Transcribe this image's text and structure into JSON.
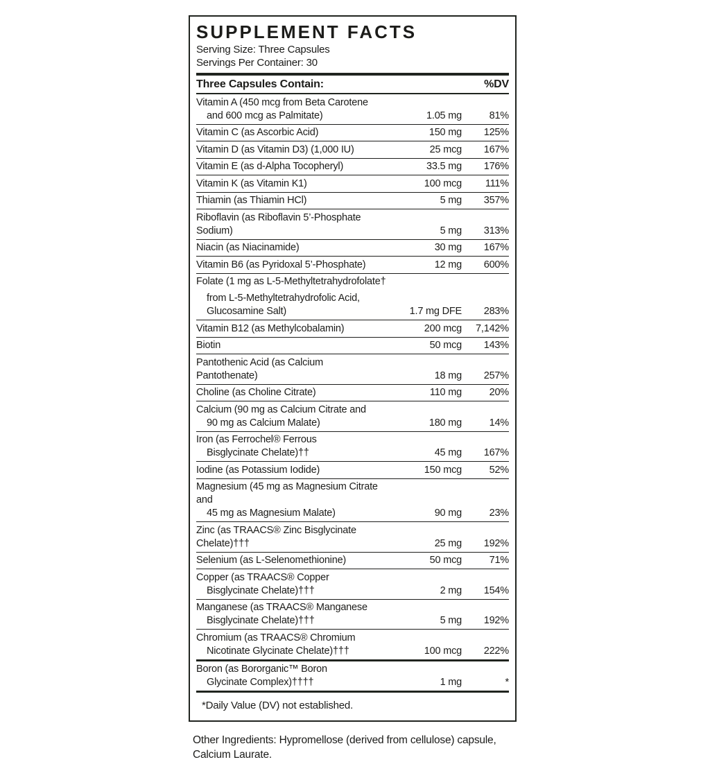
{
  "label": {
    "title": "SUPPLEMENT FACTS",
    "serving_size": "Serving Size: Three Capsules",
    "servings_per_container": "Servings Per Container: 30",
    "columns": {
      "contain": "Three Capsules Contain:",
      "dv": "%DV"
    },
    "rows": [
      {
        "name_lines": [
          "Vitamin A (450 mcg from Beta Carotene",
          "and 600 mcg as Palmitate)"
        ],
        "amount": "1.05 mg",
        "dv": "81%"
      },
      {
        "name_lines": [
          "Vitamin C (as Ascorbic Acid)"
        ],
        "amount": "150 mg",
        "dv": "125%"
      },
      {
        "name_lines": [
          "Vitamin D (as Vitamin D3) (1,000 IU)"
        ],
        "amount": "25 mcg",
        "dv": "167%"
      },
      {
        "name_lines": [
          "Vitamin E (as d-Alpha Tocopheryl)"
        ],
        "amount": "33.5 mg",
        "dv": "176%"
      },
      {
        "name_lines": [
          "Vitamin K (as Vitamin K1)"
        ],
        "amount": "100 mcg",
        "dv": "111%"
      },
      {
        "name_lines": [
          "Thiamin (as Thiamin HCl)"
        ],
        "amount": "5 mg",
        "dv": "357%"
      },
      {
        "name_lines": [
          "Riboflavin (as Riboflavin 5’-Phosphate Sodium)"
        ],
        "amount": "5 mg",
        "dv": "313%"
      },
      {
        "name_lines": [
          "Niacin (as Niacinamide)"
        ],
        "amount": "30 mg",
        "dv": "167%"
      },
      {
        "name_lines": [
          "Vitamin B6 (as Pyridoxal 5’-Phosphate)"
        ],
        "amount": "12 mg",
        "dv": "600%"
      },
      {
        "name_lines": [
          "Folate (1 mg as L-5-Methyltetrahydrofolate†",
          "from L-5-Methyltetrahydrofolic Acid,",
          "Glucosamine Salt)"
        ],
        "amount": "1.7 mg DFE",
        "dv": "283%",
        "extra_gap": true
      },
      {
        "name_lines": [
          "Vitamin B12 (as Methylcobalamin)"
        ],
        "amount": "200 mcg",
        "dv": "7,142%"
      },
      {
        "name_lines": [
          "Biotin"
        ],
        "amount": "50 mcg",
        "dv": "143%"
      },
      {
        "name_lines": [
          "Pantothenic Acid (as Calcium Pantothenate)"
        ],
        "amount": "18 mg",
        "dv": "257%"
      },
      {
        "name_lines": [
          "Choline (as Choline Citrate)"
        ],
        "amount": "110 mg",
        "dv": "20%"
      },
      {
        "name_lines": [
          "Calcium (90 mg as Calcium Citrate and",
          "90 mg as Calcium Malate)"
        ],
        "amount": "180 mg",
        "dv": "14%"
      },
      {
        "name_lines": [
          "Iron (as Ferrochel® Ferrous",
          "Bisglycinate Chelate)††"
        ],
        "amount": "45 mg",
        "dv": "167%"
      },
      {
        "name_lines": [
          "Iodine (as Potassium Iodide)"
        ],
        "amount": "150 mcg",
        "dv": "52%"
      },
      {
        "name_lines": [
          "Magnesium (45 mg as Magnesium Citrate and",
          "45 mg as Magnesium Malate)"
        ],
        "amount": "90 mg",
        "dv": "23%"
      },
      {
        "name_lines": [
          "Zinc (as TRAACS® Zinc Bisglycinate Chelate)†††"
        ],
        "amount": "25 mg",
        "dv": "192%"
      },
      {
        "name_lines": [
          "Selenium (as L-Selenomethionine)"
        ],
        "amount": "50 mcg",
        "dv": "71%"
      },
      {
        "name_lines": [
          "Copper (as TRAACS® Copper",
          "Bisglycinate Chelate)†††"
        ],
        "amount": "2 mg",
        "dv": "154%"
      },
      {
        "name_lines": [
          "Manganese (as TRAACS® Manganese",
          "Bisglycinate Chelate)†††"
        ],
        "amount": "5 mg",
        "dv": "192%"
      },
      {
        "name_lines": [
          "Chromium (as TRAACS® Chromium",
          "Nicotinate Glycinate Chelate)†††"
        ],
        "amount": "100 mcg",
        "dv": "222%"
      },
      {
        "name_lines": [
          "Boron (as Bororganic™ Boron",
          "Glycinate Complex)††††"
        ],
        "amount": "1 mg",
        "dv": "*",
        "thick_top": true
      }
    ],
    "footnote": "*Daily Value (DV) not established."
  },
  "other_ingredients": "Other Ingredients: Hypromellose (derived from cellulose) capsule, Calcium Laurate."
}
